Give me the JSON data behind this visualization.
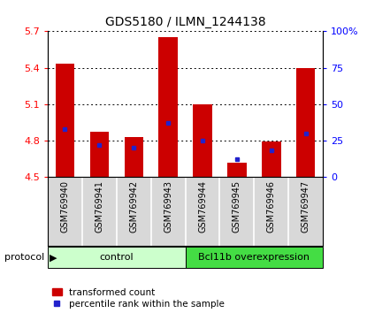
{
  "title": "GDS5180 / ILMN_1244138",
  "samples": [
    "GSM769940",
    "GSM769941",
    "GSM769942",
    "GSM769943",
    "GSM769944",
    "GSM769945",
    "GSM769946",
    "GSM769947"
  ],
  "red_values": [
    5.43,
    4.87,
    4.83,
    5.65,
    5.095,
    4.62,
    4.79,
    5.4
  ],
  "blue_values_pct": [
    33,
    22,
    20,
    37,
    25,
    12,
    18,
    30
  ],
  "ymin": 4.5,
  "ymax": 5.7,
  "yticks_left": [
    4.5,
    4.8,
    5.1,
    5.4,
    5.7
  ],
  "ytick_labels_left": [
    "4.5",
    "4.8",
    "5.1",
    "5.4",
    "5.7"
  ],
  "yticks_right_pct": [
    0,
    25,
    50,
    75,
    100
  ],
  "ytick_labels_right": [
    "0",
    "25",
    "50",
    "75",
    "100%"
  ],
  "groups": [
    {
      "label": "control",
      "start": 0,
      "end": 4,
      "color": "#ccffcc"
    },
    {
      "label": "Bcl11b overexpression",
      "start": 4,
      "end": 8,
      "color": "#44dd44"
    }
  ],
  "protocol_label": "protocol",
  "legend_red": "transformed count",
  "legend_blue": "percentile rank within the sample",
  "bar_color": "#cc0000",
  "dot_color": "#2222cc",
  "bar_width": 0.55,
  "sample_bg": "#d8d8d8",
  "plot_bg": "#ffffff"
}
